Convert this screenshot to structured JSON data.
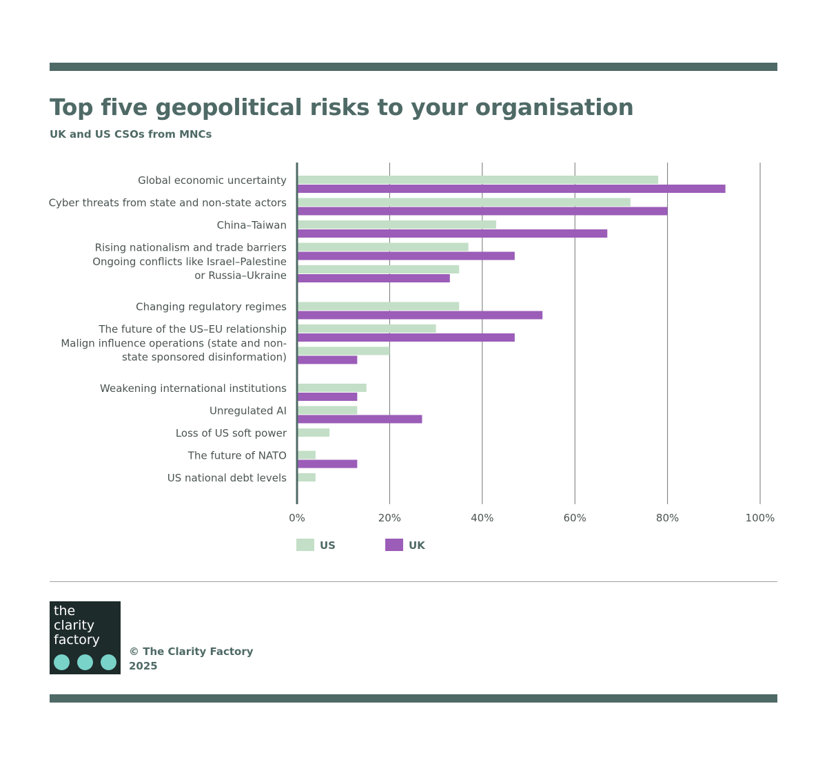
{
  "header": {
    "title": "Top five geopolitical risks to your organisation",
    "subtitle": "UK and US CSOs from MNCs"
  },
  "chart_data": {
    "type": "bar",
    "orientation": "horizontal",
    "title": "Top five geopolitical risks to your organisation",
    "subtitle": "UK and US CSOs from MNCs",
    "categories": [
      "Global economic uncertainty",
      "Cyber threats from state and non-state actors",
      "China–Taiwan",
      "Rising nationalism and trade barriers",
      "Ongoing conflicts like Israel–Palestine or Russia–Ukraine",
      "Changing regulatory regimes",
      "The future of the US–EU relationship",
      "Malign influence operations (state and non-state sponsored disinformation)",
      "Weakening international institutions",
      "Unregulated AI",
      "Loss of US soft power",
      "The future of NATO",
      "US national debt levels"
    ],
    "category_lines": [
      [
        "Global economic uncertainty"
      ],
      [
        "Cyber threats from state and non-state actors"
      ],
      [
        "China–Taiwan"
      ],
      [
        "Rising nationalism and trade barriers"
      ],
      [
        "Ongoing conflicts like Israel–Palestine",
        "or Russia–Ukraine"
      ],
      [
        "Changing regulatory regimes"
      ],
      [
        "The future of the US–EU relationship"
      ],
      [
        "Malign influence operations (state and non-",
        "state sponsored disinformation)"
      ],
      [
        "Weakening international institutions"
      ],
      [
        "Unregulated AI"
      ],
      [
        "Loss of US soft power"
      ],
      [
        "The future of NATO"
      ],
      [
        "US national debt levels"
      ]
    ],
    "series": [
      {
        "name": "US",
        "color": "#c3dfc7",
        "values": [
          78,
          72,
          43,
          37,
          35,
          35,
          30,
          20,
          15,
          13,
          7,
          4,
          4
        ]
      },
      {
        "name": "UK",
        "color": "#9b5db8",
        "values": [
          92.5,
          80,
          67,
          47,
          33,
          53,
          47,
          13,
          13,
          27,
          0,
          13,
          0
        ]
      }
    ],
    "xlim": [
      0,
      100
    ],
    "ticks": [
      0,
      20,
      40,
      60,
      80,
      100
    ],
    "tick_labels": [
      "0%",
      "20%",
      "40%",
      "60%",
      "80%",
      "100%"
    ],
    "grid": true,
    "legend_position": "bottom-left"
  },
  "footer": {
    "logo_text": "the\nclarity\nfactory",
    "copyright_line1": "© The Clarity Factory",
    "copyright_line2": "2025"
  },
  "colors": {
    "band": "#4f6a66",
    "title": "#4f6a66",
    "text": "#4a5452",
    "grid": "#6f7472",
    "axis": "#4f6a66",
    "logo_bg": "#1e2b2b",
    "logo_dot": "#79d3c9"
  }
}
